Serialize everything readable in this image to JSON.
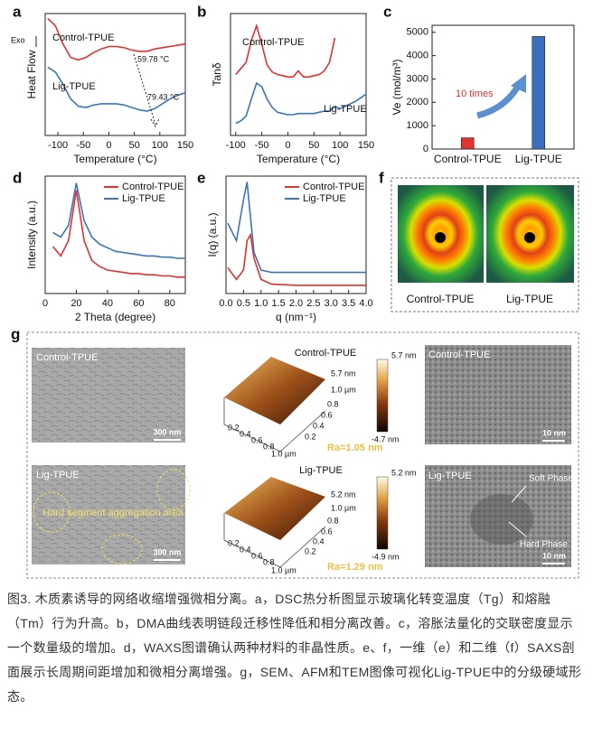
{
  "chart_data": [
    {
      "type": "line",
      "label": "a",
      "x_label": "Temperature (°C)",
      "y_label": "Heat Flow",
      "exo_label": "Exo",
      "xlim": [
        -125,
        150
      ],
      "xticks": [
        -100,
        -50,
        0,
        50,
        100,
        150
      ],
      "ylim": [
        0,
        10
      ],
      "legend": "inline",
      "annotations": [
        "59.78 °C",
        "79.43 °C"
      ],
      "x": [
        -120,
        -105,
        -90,
        -75,
        -60,
        -45,
        -30,
        -15,
        0,
        15,
        30,
        45,
        60,
        75,
        90,
        105,
        120,
        135,
        150
      ],
      "series": [
        {
          "name": "Control-TPUE",
          "color": "#e0322e",
          "values": [
            9.6,
            9.0,
            7.5,
            6.4,
            6.2,
            6.4,
            6.8,
            7.1,
            7.3,
            7.3,
            7.2,
            7.0,
            6.9,
            6.9,
            7.1,
            7.2,
            7.3,
            7.4,
            7.5
          ]
        },
        {
          "name": "Lig-TPUE",
          "color": "#3a75b9",
          "values": [
            5.6,
            5.2,
            4.2,
            3.0,
            2.4,
            2.3,
            2.5,
            2.6,
            2.6,
            2.6,
            2.5,
            2.3,
            2.1,
            2.0,
            2.2,
            2.6,
            3.0,
            3.3,
            3.5
          ]
        }
      ]
    },
    {
      "type": "line",
      "label": "b",
      "x_label": "Temperature (°C)",
      "y_label": "Tanδ",
      "xlim": [
        -110,
        150
      ],
      "xticks": [
        -100,
        -50,
        0,
        50,
        100,
        150
      ],
      "ylim": [
        0,
        10
      ],
      "legend": "inline",
      "x": [
        -100,
        -90,
        -80,
        -70,
        -60,
        -50,
        -40,
        -30,
        -20,
        -10,
        0,
        10,
        20,
        30,
        40,
        50,
        60,
        70,
        80,
        90,
        100,
        110,
        120,
        130,
        140,
        150
      ],
      "series": [
        {
          "name": "Control-TPUE",
          "color": "#e0322e",
          "values": [
            5.0,
            5.5,
            6.0,
            7.8,
            9.0,
            7.5,
            5.8,
            5.2,
            5.0,
            4.9,
            4.8,
            4.8,
            5.3,
            4.8,
            4.8,
            4.9,
            5.0,
            5.3,
            6.0,
            8.0,
            null,
            null,
            null,
            null,
            null,
            null
          ]
        },
        {
          "name": "Lig-TPUE",
          "color": "#3a75b9",
          "values": [
            1.0,
            1.2,
            1.6,
            3.0,
            4.3,
            4.0,
            3.0,
            2.3,
            1.9,
            1.8,
            1.7,
            1.7,
            1.8,
            1.8,
            1.8,
            1.8,
            1.9,
            2.0,
            2.0,
            2.4,
            2.2,
            2.4,
            2.6,
            2.8,
            3.1,
            3.4
          ]
        }
      ]
    },
    {
      "type": "bar",
      "label": "c",
      "y_label": "Ve  (mol/m³)",
      "annotation": "10 times",
      "categories": [
        "Control-TPUE",
        "Lig-TPUE"
      ],
      "values": [
        480,
        4820
      ],
      "colors": [
        "#e0322e",
        "#3a6fc0"
      ],
      "ylim": [
        0,
        5300
      ],
      "yticks": [
        0,
        1000,
        2000,
        3000,
        4000,
        5000
      ]
    },
    {
      "type": "line",
      "label": "d",
      "x_label": "2 Theta (degree)",
      "y_label": "Intensity (a.u.)",
      "xlim": [
        0,
        90
      ],
      "xticks": [
        0,
        20,
        40,
        60,
        80
      ],
      "ylim": [
        0,
        10
      ],
      "legend": "upper right",
      "x": [
        5,
        10,
        15,
        20,
        25,
        30,
        35,
        40,
        45,
        50,
        55,
        60,
        65,
        70,
        75,
        80,
        85,
        90
      ],
      "series": [
        {
          "name": "Control-TPUE",
          "color": "#e0322e",
          "values": [
            4.0,
            3.2,
            4.5,
            8.8,
            4.5,
            2.8,
            2.3,
            2.0,
            1.9,
            1.8,
            1.7,
            1.7,
            1.6,
            1.6,
            1.5,
            1.5,
            1.4,
            1.4
          ]
        },
        {
          "name": "Lig-TPUE",
          "color": "#3a75b9",
          "values": [
            5.2,
            4.8,
            5.8,
            9.4,
            6.2,
            4.8,
            4.2,
            3.9,
            3.6,
            3.5,
            3.4,
            3.3,
            3.2,
            3.2,
            3.1,
            3.1,
            3.0,
            3.0
          ]
        }
      ]
    },
    {
      "type": "line",
      "label": "e",
      "x_label": "q (nm⁻¹)",
      "y_label": "I(q) (a.u.)",
      "xlim": [
        0,
        4
      ],
      "xticks": [
        {
          "value": 0,
          "label": "0.0"
        },
        0.5,
        {
          "value": 1,
          "label": "1.0"
        },
        1.5,
        {
          "value": 2,
          "label": "2.0"
        },
        2.5,
        {
          "value": 3,
          "label": "3.0"
        },
        3.5,
        {
          "value": 4,
          "label": "4.0"
        }
      ],
      "ylim": [
        0,
        10
      ],
      "legend": "upper right",
      "x": [
        0.05,
        0.3,
        0.5,
        0.6,
        0.7,
        0.8,
        1.0,
        1.3,
        2,
        3,
        4
      ],
      "series": [
        {
          "name": "Control-TPUE",
          "color": "#e0322e",
          "values": [
            2.2,
            1.2,
            2.0,
            4.5,
            5.0,
            3.0,
            1.2,
            0.8,
            0.7,
            0.7,
            0.7
          ]
        },
        {
          "name": "Lig-TPUE",
          "color": "#3a75b9",
          "values": [
            6.0,
            4.5,
            8.0,
            9.5,
            6.5,
            3.5,
            2.0,
            1.8,
            1.8,
            1.8,
            1.8
          ]
        }
      ]
    }
  ],
  "panel_f": {
    "label": "f",
    "images": [
      "Control-TPUE",
      "Lig-TPUE"
    ]
  },
  "panel_g": {
    "label": "g",
    "sem": [
      {
        "label": "Control-TPUE",
        "scale": "300 nm"
      },
      {
        "label": "Lig-TPUE",
        "scale": "300 nm",
        "annotation": "Hard segment aggregation area"
      }
    ],
    "afm": [
      {
        "label": "Control-TPUE",
        "max": "5.7 nm",
        "min": "-4.7 nm",
        "ra": "Ra=1.05 nm",
        "z_tick": "5.7 nm",
        "y_ticks": [
          "1.0 µm",
          "0.8",
          "0.6",
          "0.4",
          "0.2"
        ],
        "x_ticks": [
          "0.2",
          "0.4",
          "0.6",
          "0.8",
          "1.0 µm"
        ]
      },
      {
        "label": "Lig-TPUE",
        "max": "5.2 nm",
        "min": "-4.9 nm",
        "ra": "Ra=1.29 nm",
        "z_tick": "5.2 nm",
        "y_ticks": [
          "1.0 µm",
          "0.8",
          "0.6",
          "0.4",
          "0.2"
        ],
        "x_ticks": [
          "0.2",
          "0.4",
          "0.6",
          "0.8",
          "1.0 µm"
        ]
      }
    ],
    "tem": [
      {
        "label": "Control-TPUE",
        "scale": "10 nm"
      },
      {
        "label": "Lig-TPUE",
        "scale": "10 nm",
        "soft": "Soft Phase",
        "hard": "Hard Phase"
      }
    ]
  },
  "caption": "图3. 木质素诱导的网络收缩增强微相分离。a，DSC热分析图显示玻璃化转变温度（Tg）和熔融（Tm）行为升高。b，DMA曲线表明链段迁移性降低和相分离改善。c，溶胀法量化的交联密度显示一个数量级的增加。d，WAXS图谱确认两种材料的非晶性质。e、f，一维（e）和二维（f）SAXS剖面展示长周期间距增加和微相分离增强。g，SEM、AFM和TEM图像可视化Lig-TPUE中的分级硬域形态。"
}
